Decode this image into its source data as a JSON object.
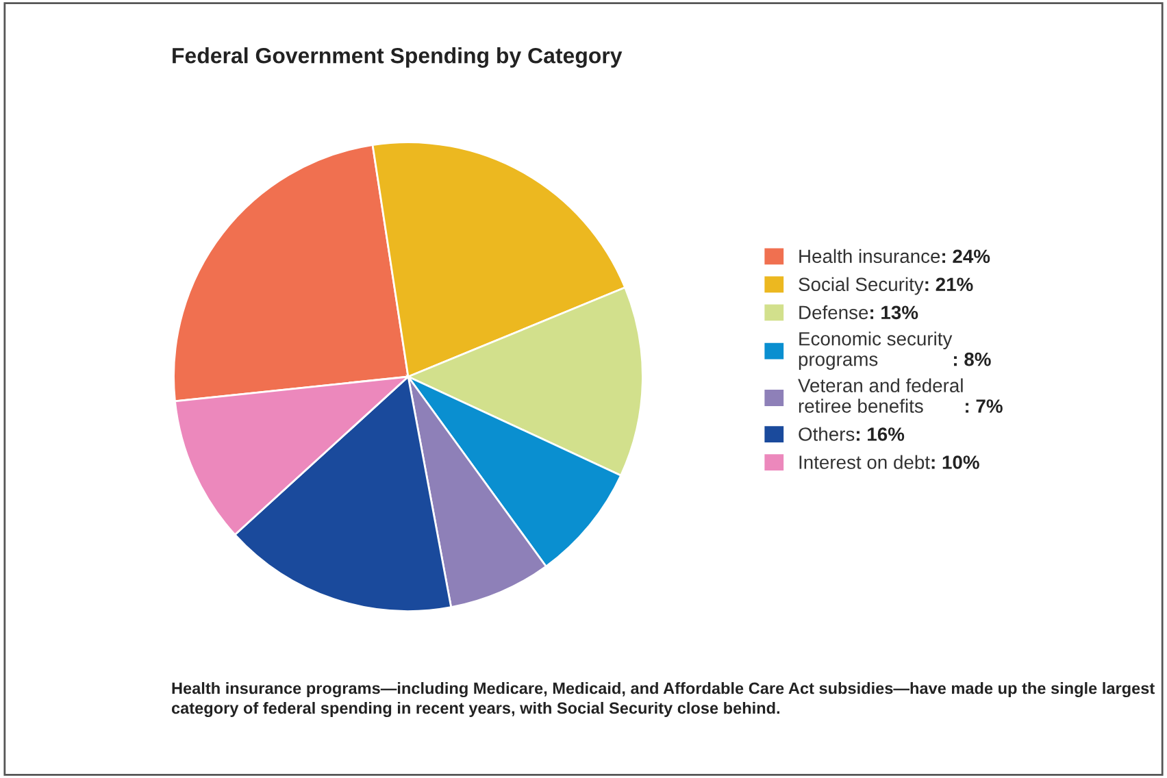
{
  "chart_data": {
    "type": "pie",
    "title": "Federal Government Spending by Category",
    "categories": [
      "Health insurance",
      "Social Security",
      "Defense",
      "Economic security programs",
      "Veteran and federal retiree benefits",
      "Others",
      "Interest on debt"
    ],
    "values": [
      24,
      21,
      13,
      8,
      7,
      16,
      10
    ],
    "colors": [
      "#f07050",
      "#ecb820",
      "#d2e08c",
      "#0a8fd0",
      "#8e80b8",
      "#1a4a9c",
      "#ec88bc"
    ],
    "value_labels": [
      ": 24%",
      ": 21%",
      ": 13%",
      ": 8%",
      ": 7%",
      ": 16%",
      ": 10%"
    ],
    "legend": "right",
    "annotations": [
      "Health insurance programs—including Medicare, Medicaid, and Affordable Care Act subsidies—have made up the single largest category of federal spending in recent years, with Social Security close behind."
    ]
  }
}
